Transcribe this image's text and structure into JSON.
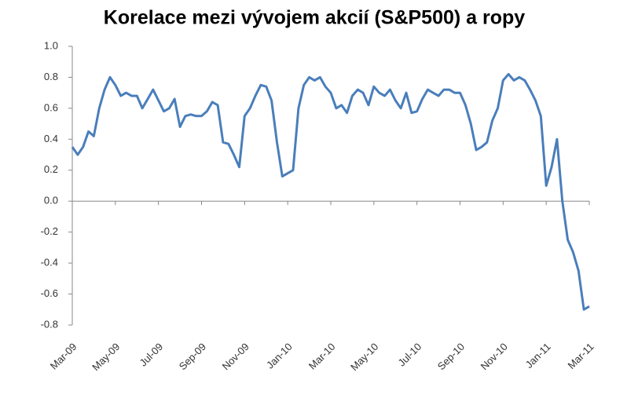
{
  "chart_data": {
    "type": "line",
    "title": "Korelace mezi vývojem akcií (S&P500) a ropy",
    "categories": [
      "Mar-09",
      null,
      null,
      null,
      null,
      null,
      null,
      null,
      "May-09",
      null,
      null,
      null,
      null,
      null,
      null,
      null,
      "Jul-09",
      null,
      null,
      null,
      null,
      null,
      null,
      null,
      "Sep-09",
      null,
      null,
      null,
      null,
      null,
      null,
      null,
      "Nov-09",
      null,
      null,
      null,
      null,
      null,
      null,
      null,
      "Jan-10",
      null,
      null,
      null,
      null,
      null,
      null,
      null,
      "Mar-10",
      null,
      null,
      null,
      null,
      null,
      null,
      null,
      "May-10",
      null,
      null,
      null,
      null,
      null,
      null,
      null,
      "Jul-10",
      null,
      null,
      null,
      null,
      null,
      null,
      null,
      "Sep-10",
      null,
      null,
      null,
      null,
      null,
      null,
      null,
      "Nov-10",
      null,
      null,
      null,
      null,
      null,
      null,
      null,
      "Jan-11",
      null,
      null,
      null,
      null,
      null,
      null,
      null,
      "Mar-11"
    ],
    "series": [
      {
        "color": "#4a7ebb",
        "values": [
          0.35,
          0.3,
          0.35,
          0.45,
          0.42,
          0.6,
          0.72,
          0.8,
          0.75,
          0.68,
          0.7,
          0.68,
          0.68,
          0.6,
          0.66,
          0.72,
          0.65,
          0.58,
          0.6,
          0.66,
          0.48,
          0.55,
          0.56,
          0.55,
          0.55,
          0.58,
          0.64,
          0.62,
          0.38,
          0.37,
          0.3,
          0.22,
          0.55,
          0.6,
          0.68,
          0.75,
          0.74,
          0.65,
          0.38,
          0.16,
          0.18,
          0.2,
          0.6,
          0.75,
          0.8,
          0.78,
          0.8,
          0.74,
          0.7,
          0.6,
          0.62,
          0.57,
          0.68,
          0.72,
          0.7,
          0.62,
          0.74,
          0.7,
          0.68,
          0.72,
          0.65,
          0.6,
          0.7,
          0.57,
          0.58,
          0.66,
          0.72,
          0.7,
          0.68,
          0.72,
          0.72,
          0.7,
          0.7,
          0.62,
          0.5,
          0.33,
          0.35,
          0.38,
          0.52,
          0.6,
          0.78,
          0.82,
          0.78,
          0.8,
          0.78,
          0.72,
          0.65,
          0.55,
          0.1,
          0.22,
          0.4,
          0.0,
          -0.25,
          -0.33,
          -0.45,
          -0.7,
          -0.68
        ]
      }
    ],
    "ylim": [
      -0.8,
      1.0
    ],
    "yticks": [
      {
        "value": 1.0,
        "label": "1.0"
      },
      0.8,
      0.6,
      0.4,
      0.2,
      {
        "value": 0.0,
        "label": "0.0"
      },
      -0.2,
      -0.4,
      -0.6,
      -0.8
    ]
  }
}
